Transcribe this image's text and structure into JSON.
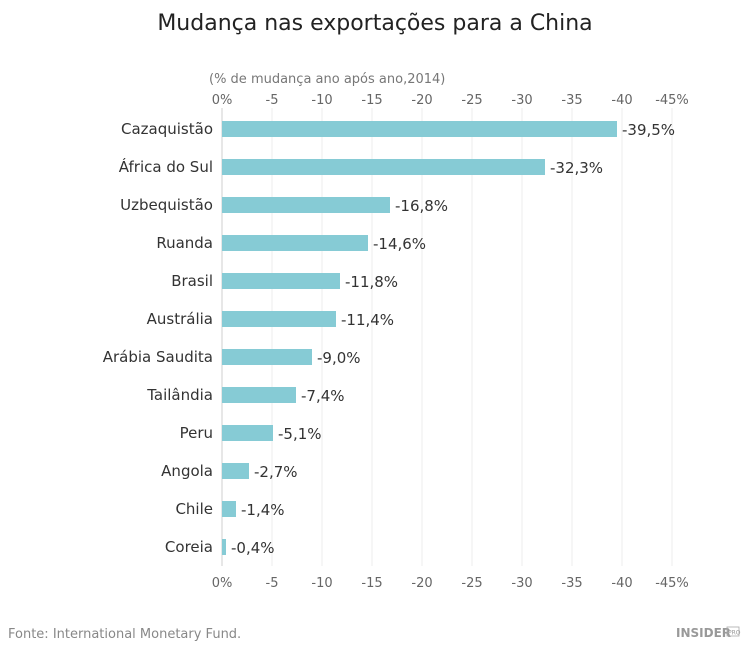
{
  "chart_data": {
    "type": "bar",
    "orientation": "horizontal",
    "title": "Mudança nas exportações para a China",
    "subtitle": "(% de mudança ano após ano,2014)",
    "categories": [
      "Cazaquistão",
      "África do Sul",
      "Uzbequistão",
      "Ruanda",
      "Brasil",
      "Austrália",
      "Arábia Saudita",
      "Tailândia",
      "Peru",
      "Angola",
      "Chile",
      "Coreia"
    ],
    "values": [
      -39.5,
      -32.3,
      -16.8,
      -14.6,
      -11.8,
      -11.4,
      -9.0,
      -7.4,
      -5.1,
      -2.7,
      -1.4,
      -0.4
    ],
    "data_labels": [
      "-39,5%",
      "-32,3%",
      "-16,8%",
      "-14,6%",
      "-11,8%",
      "-11,4%",
      "-9,0%",
      "-7,4%",
      "-5,1%",
      "-2,7%",
      "-1,4%",
      "-0,4%"
    ],
    "xlim": [
      0,
      -45
    ],
    "ticks": [
      0,
      -5,
      -10,
      -15,
      -20,
      -25,
      -30,
      -35,
      -40,
      -45
    ],
    "tick_labels": [
      "0%",
      "-5",
      "-10",
      "-15",
      "-20",
      "-25",
      "-30",
      "-35",
      "-40",
      "-45%"
    ],
    "axis_position": "top and bottom",
    "grid": true,
    "bar_color": "#86cbd5",
    "grid_color": "#ececec"
  },
  "footer": {
    "source": "Fonte: International Monetary Fund.",
    "logo": "INSIDER PRO"
  }
}
